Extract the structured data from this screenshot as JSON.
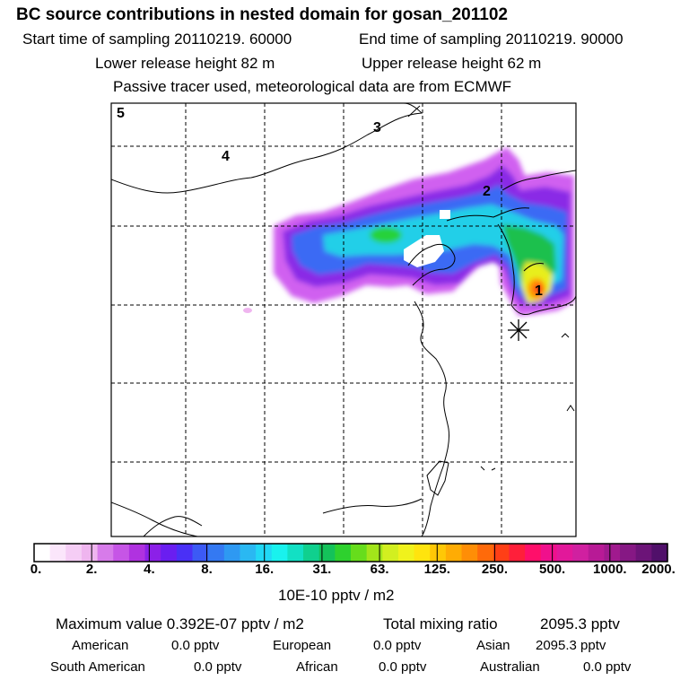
{
  "header": {
    "title": "BC  source contributions in nested domain for gosan_201102",
    "start_label": "Start time of sampling 20110219. 60000",
    "end_label": "End time of sampling 20110219. 90000",
    "lower_label": "Lower release height   82 m",
    "upper_label": "Upper release height   62 m",
    "tracer_label": "Passive tracer used, meteorological data are from ECMWF"
  },
  "map": {
    "region_labels": [
      "5",
      "4",
      "3",
      "2",
      "1"
    ],
    "receptor_marker": "asterisk"
  },
  "colorbar": {
    "ticks": [
      "0.",
      "2.",
      "4.",
      "8.",
      "16.",
      "31.",
      "63.",
      "125.",
      "250.",
      "500.",
      "1000.",
      "2000."
    ],
    "colors": [
      "#ffffff",
      "#fbe6fb",
      "#f5cdf5",
      "#efb5ef",
      "#d77bea",
      "#c655e6",
      "#b032e0",
      "#8c20e8",
      "#6a1ef0",
      "#4a30f6",
      "#3c5af5",
      "#3479f2",
      "#2e99f2",
      "#2ab8f2",
      "#21d8f5",
      "#19f2ee",
      "#12e0c4",
      "#10d08e",
      "#14c25a",
      "#2ed12e",
      "#66dd1c",
      "#a2e51a",
      "#d2ef20",
      "#f0f21c",
      "#ffe40e",
      "#ffc806",
      "#ffac04",
      "#ff8e06",
      "#ff6a0a",
      "#ff3f16",
      "#ff1f3a",
      "#ff0f6a",
      "#f0108c",
      "#e2189a",
      "#d020a0",
      "#b81a96",
      "#a01a8e",
      "#861884",
      "#6c1478",
      "#50106a"
    ],
    "unit_label": "10E-10 pptv / m2"
  },
  "summary": {
    "max_label": "Maximum value  0.392E-07 pptv / m2",
    "total_label": "Total mixing ratio",
    "total_value": "2095.3 pptv",
    "rows": [
      [
        [
          "American",
          "0.0 pptv"
        ],
        [
          "European",
          "0.0 pptv"
        ],
        [
          "Asian",
          "2095.3 pptv"
        ]
      ],
      [
        [
          "South American",
          "0.0 pptv"
        ],
        [
          "African",
          "0.0 pptv"
        ],
        [
          "Australian",
          "0.0 pptv"
        ]
      ]
    ]
  },
  "colors": {
    "frame": "#000000",
    "grid": "#000000"
  }
}
